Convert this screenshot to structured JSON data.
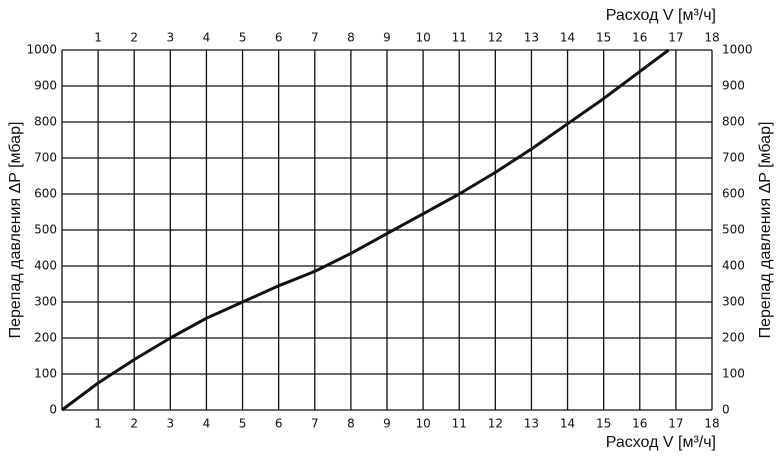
{
  "chart_data": {
    "type": "line",
    "x_label": "Расход V [м³/ч]",
    "y_label": "Перепад давления ΔP [мбар]",
    "x": [
      0,
      1,
      2,
      3,
      4,
      5,
      6,
      7,
      8,
      9,
      10,
      11,
      12,
      13,
      14,
      15,
      16,
      16.8
    ],
    "series": [
      {
        "color": "#111111",
        "values": [
          0,
          75,
          140,
          200,
          255,
          300,
          345,
          385,
          435,
          490,
          545,
          600,
          660,
          725,
          795,
          865,
          940,
          1000
        ]
      }
    ],
    "xlim": [
      0,
      18
    ],
    "xticks": [
      1,
      2,
      3,
      4,
      5,
      6,
      7,
      8,
      9,
      10,
      11,
      12,
      13,
      14,
      15,
      16,
      17,
      18
    ],
    "ylim": [
      0,
      1000
    ],
    "yticks": [
      0,
      100,
      200,
      300,
      400,
      500,
      600,
      700,
      800,
      900,
      1000
    ],
    "grid": true
  }
}
